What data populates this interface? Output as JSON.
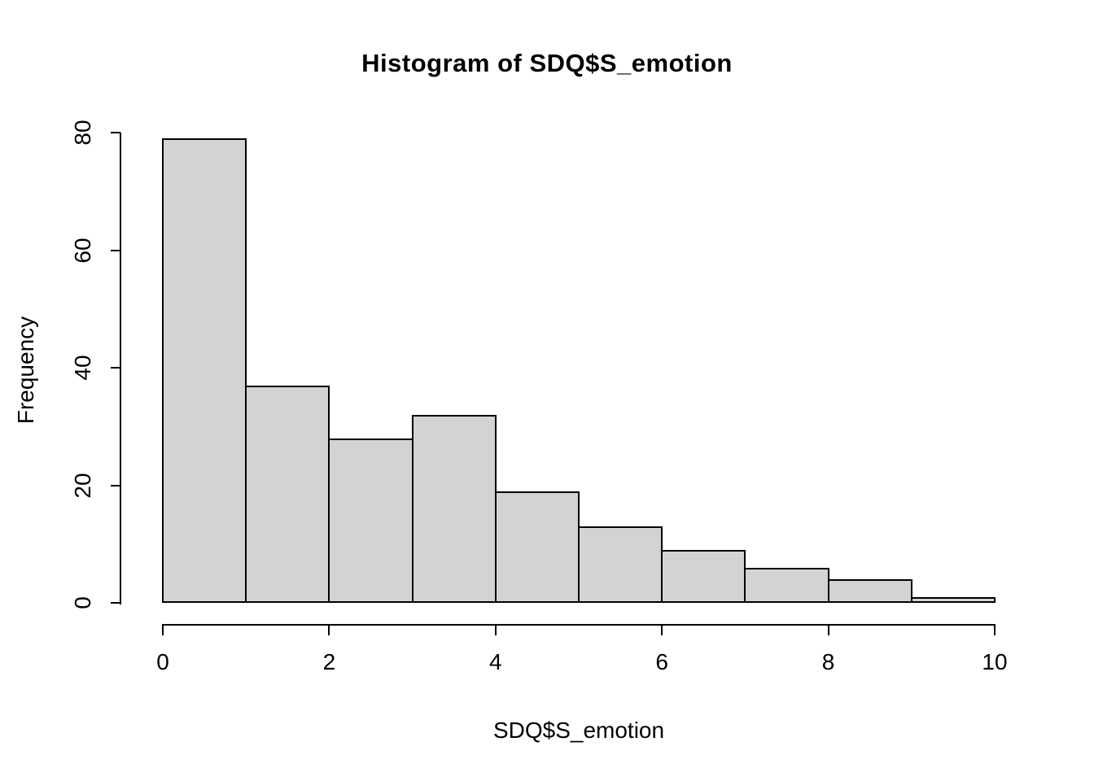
{
  "chart_data": {
    "type": "bar",
    "chart_kind": "histogram",
    "title": "Histogram of SDQ$S_emotion",
    "xlabel": "SDQ$S_emotion",
    "ylabel": "Frequency",
    "bins": [
      [
        0,
        1
      ],
      [
        1,
        2
      ],
      [
        2,
        3
      ],
      [
        3,
        4
      ],
      [
        4,
        5
      ],
      [
        5,
        6
      ],
      [
        6,
        7
      ],
      [
        7,
        8
      ],
      [
        8,
        9
      ],
      [
        9,
        10
      ]
    ],
    "values": [
      79,
      37,
      28,
      32,
      19,
      13,
      9,
      6,
      4,
      1
    ],
    "xlim": [
      0,
      10
    ],
    "ylim": [
      0,
      80
    ],
    "x_ticks": [
      0,
      2,
      4,
      6,
      8,
      10
    ],
    "y_ticks": [
      0,
      20,
      40,
      60,
      80
    ],
    "grid": false,
    "legend_position": "none",
    "bar_fill": "#d3d3d3",
    "bar_border": "#000000",
    "text_color": "#000000",
    "background": "#ffffff"
  }
}
